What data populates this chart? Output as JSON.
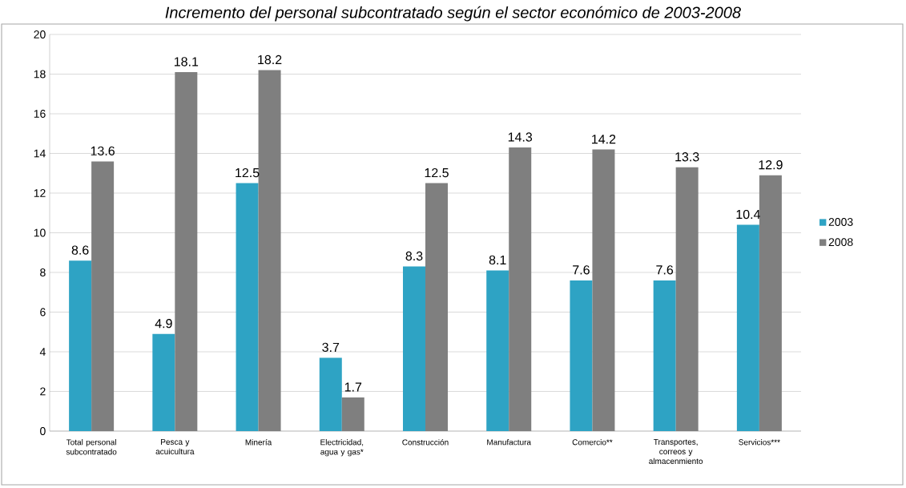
{
  "chart_data": {
    "type": "bar",
    "title": "Incremento del personal subcontratado según el sector económico de 2003-2008",
    "categories": [
      "Total personal subcontratado",
      "Pesca y acuicultura",
      "Minería",
      "Electricidad, agua y gas*",
      "Construcción",
      "Manufactura",
      "Comercio**",
      "Transportes, correos y almacenmiento",
      "Servicios***"
    ],
    "series": [
      {
        "name": "2003",
        "color": "#2ea3c4",
        "values": [
          8.6,
          4.9,
          12.5,
          3.7,
          8.3,
          8.1,
          7.6,
          7.6,
          10.4
        ]
      },
      {
        "name": "2008",
        "color": "#7f7f7f",
        "values": [
          13.6,
          18.1,
          18.2,
          1.7,
          12.5,
          14.3,
          14.2,
          13.3,
          12.9
        ]
      }
    ],
    "ylim": [
      0,
      20
    ],
    "yticks": [
      0,
      2,
      4,
      6,
      8,
      10,
      12,
      14,
      16,
      18,
      20
    ],
    "grid": "y",
    "legend": "right",
    "data_labels": true
  }
}
